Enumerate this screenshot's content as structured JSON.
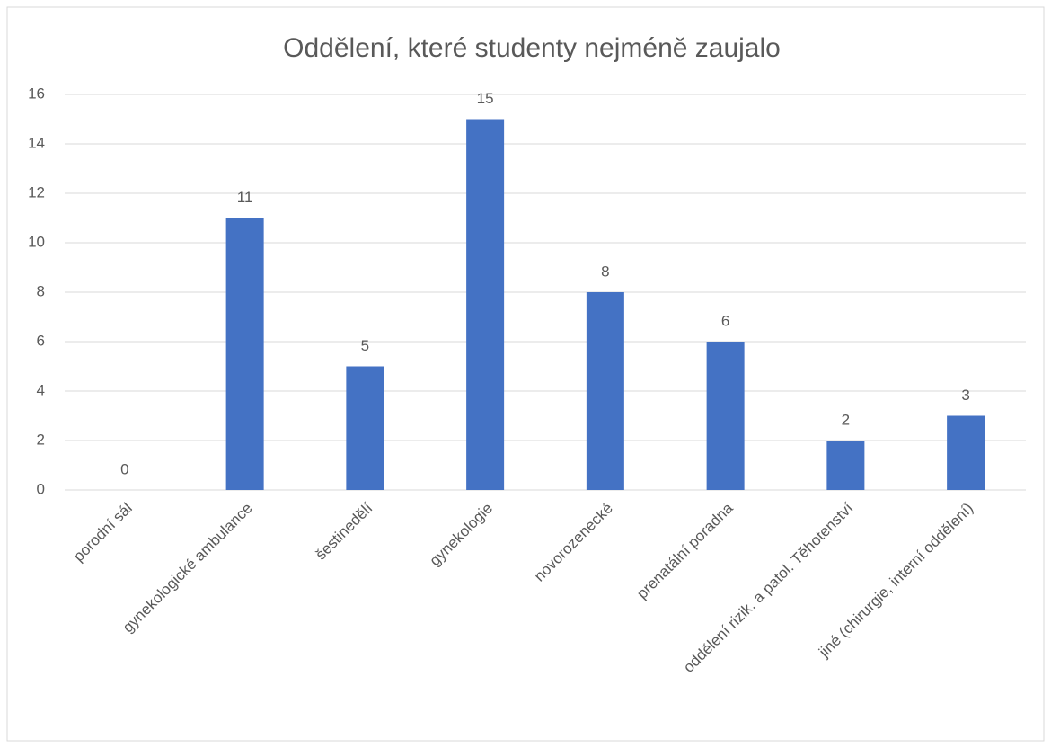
{
  "chart_data": {
    "type": "bar",
    "title": "Oddělení, které studenty nejméně zaujalo",
    "categories": [
      "porodní sál",
      "gynekologické ambulance",
      "šestinedělí",
      "gynekologie",
      "novorozenecké",
      "prenatální poradna",
      "oddělení rizik. a patol. Těhotenství",
      "jiné (chirurgie, interní oddělení)"
    ],
    "values": [
      0,
      11,
      5,
      15,
      8,
      6,
      2,
      3
    ],
    "color": "#4472c4",
    "ylim": [
      0,
      16
    ],
    "yticks": [
      0,
      2,
      4,
      6,
      8,
      10,
      12,
      14,
      16
    ],
    "grid": true
  }
}
